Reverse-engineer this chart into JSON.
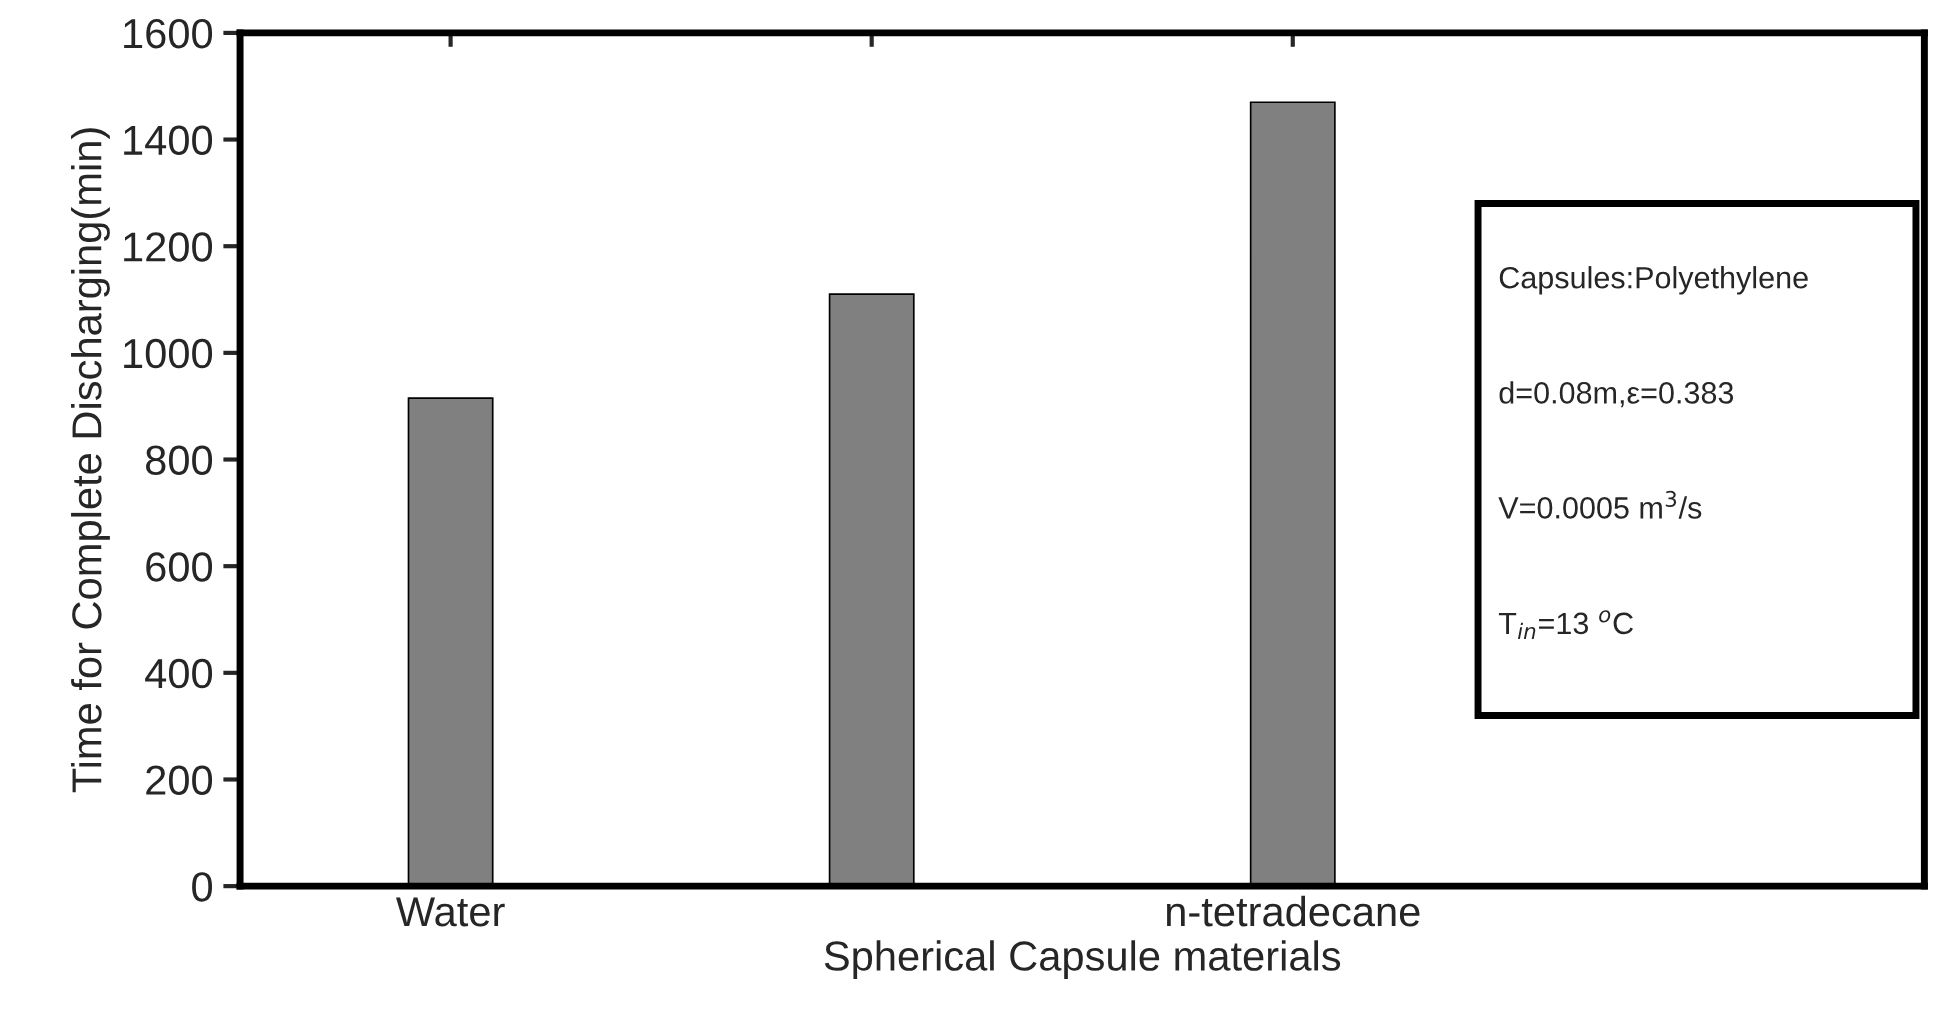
{
  "chart_data": {
    "type": "bar",
    "xlabel": "Spherical Capsule materials",
    "ylabel": "Time for Complete Discharging(min)",
    "categories": [
      "Water",
      null,
      "n-tetradecane"
    ],
    "values": [
      915,
      1110,
      1470
    ],
    "color": "#808080",
    "ylim": [
      0,
      1600
    ],
    "yticks": [
      0,
      200,
      400,
      600,
      800,
      1000,
      1200,
      1400,
      1600
    ],
    "grid": false,
    "legend": false,
    "annotations": [
      "Capsules:Polyethylene",
      "d=0.08m,ε=0.383",
      "V=0.0005 m$^{3}$/s",
      "T$_{in}$=13 $^{o}$C"
    ]
  }
}
